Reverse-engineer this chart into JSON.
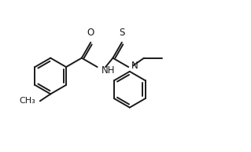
{
  "background_color": "#ffffff",
  "line_color": "#1a1a1a",
  "line_width": 1.4,
  "font_size": 8.5,
  "figsize": [
    3.19,
    1.93
  ],
  "dpi": 100,
  "xlim": [
    0.0,
    10.0
  ],
  "ylim": [
    0.0,
    6.0
  ]
}
